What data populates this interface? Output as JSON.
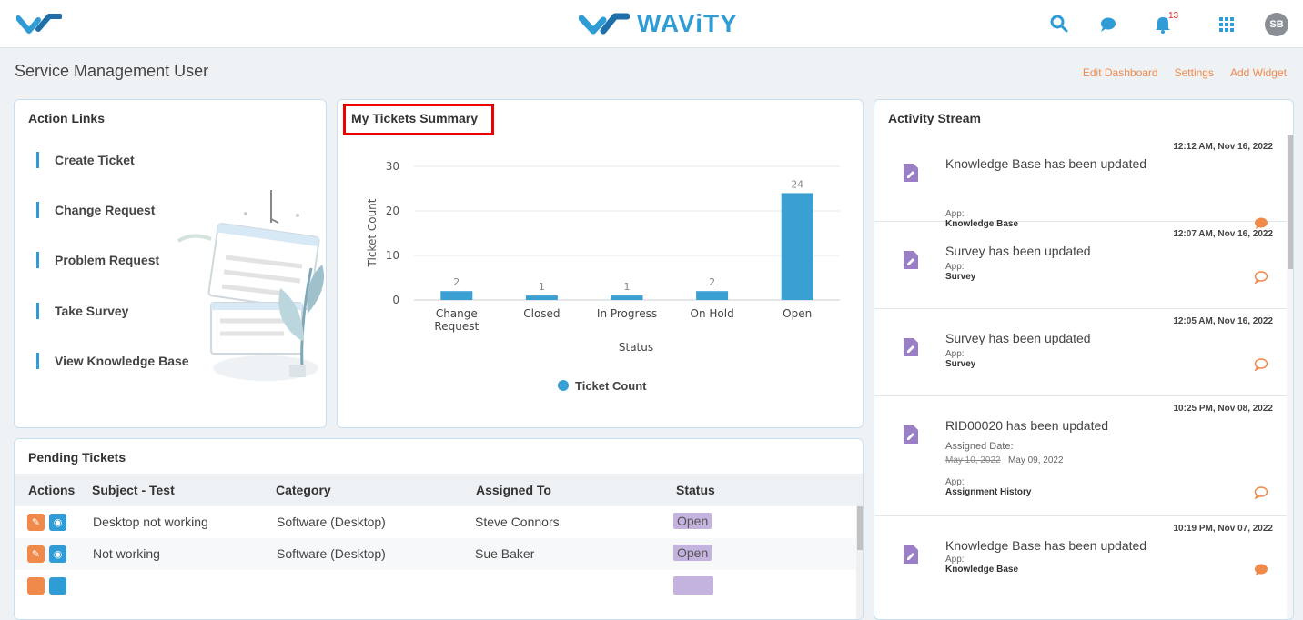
{
  "header": {
    "brand": "WAViTY",
    "notification_count": "13",
    "avatar_initials": "SB",
    "accent_color": "#2f9cd6"
  },
  "page": {
    "title": "Service Management User",
    "links": {
      "edit_dashboard": "Edit Dashboard",
      "settings": "Settings",
      "add_widget": "Add Widget"
    }
  },
  "action_links": {
    "title": "Action Links",
    "items": [
      "Create Ticket",
      "Change Request",
      "Problem Request",
      "Take Survey",
      "View Knowledge Base"
    ]
  },
  "tickets_summary": {
    "title": "My Tickets Summary"
  },
  "chart_data": {
    "type": "bar",
    "categories": [
      [
        "Change",
        "Request"
      ],
      [
        "Closed"
      ],
      [
        "In Progress"
      ],
      [
        "On Hold"
      ],
      [
        "Open"
      ]
    ],
    "series": [
      {
        "name": "Ticket Count",
        "values": [
          2,
          1,
          1,
          2,
          24
        ]
      }
    ],
    "xlabel": "Status",
    "ylabel": "Ticket Count",
    "ylim": [
      0,
      30
    ],
    "yticks": [
      0,
      10,
      20,
      30
    ],
    "grid": true,
    "legend": "bottom",
    "bar_color": "#3a9fd3"
  },
  "pending": {
    "title": "Pending Tickets",
    "columns": [
      "Actions",
      "Subject - Test",
      "Category",
      "Assigned To",
      "Status"
    ],
    "rows": [
      {
        "subject": "Desktop not working",
        "category": "Software (Desktop)",
        "assigned": "Steve Connors",
        "status": "Open"
      },
      {
        "subject": "Not working",
        "category": "Software (Desktop)",
        "assigned": "Sue Baker",
        "status": "Open"
      }
    ]
  },
  "activity": {
    "title": "Activity Stream",
    "items": [
      {
        "time": "12:12 AM, Nov 16, 2022",
        "title": "Knowledge Base has been updated",
        "app_label": "App:",
        "app": "Knowledge Base"
      },
      {
        "time": "12:07 AM, Nov 16, 2022",
        "title": "Survey has been updated",
        "app_label": "App:",
        "app": "Survey"
      },
      {
        "time": "12:05 AM, Nov 16, 2022",
        "title": "Survey has been updated",
        "app_label": "App:",
        "app": "Survey"
      },
      {
        "time": "10:25 PM, Nov 08, 2022",
        "title": "RID00020 has been updated",
        "detail_label": "Assigned Date:",
        "old_date": "May 10, 2022",
        "new_date": "May 09, 2022",
        "app_label": "App:",
        "app": "Assignment History"
      },
      {
        "time": "10:19 PM, Nov 07, 2022",
        "title": "Knowledge Base has been updated",
        "app_label": "App:",
        "app": "Knowledge Base"
      }
    ]
  }
}
